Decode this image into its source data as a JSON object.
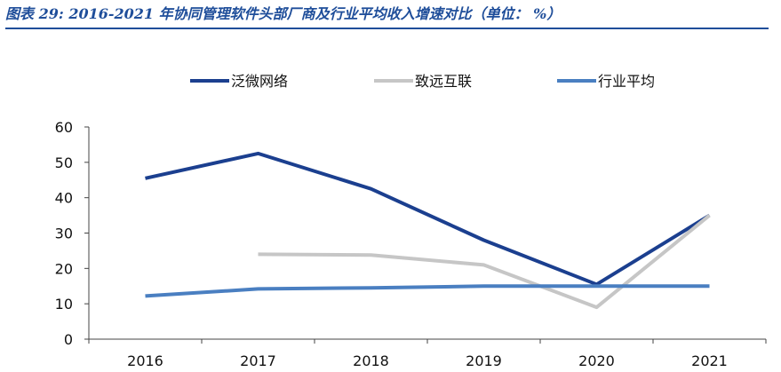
{
  "header": {
    "figure_title": "图表 29:  2016-2021 年协同管理软件头部厂商及行业平均收入增速对比（单位： %）"
  },
  "colors": {
    "header": "#1f4e9a",
    "axis": "#444444"
  },
  "chart_data": {
    "type": "line",
    "title": "",
    "xlabel": "",
    "ylabel": "",
    "categories": [
      "2016",
      "2017",
      "2018",
      "2019",
      "2020",
      "2021"
    ],
    "ylim": [
      0,
      60
    ],
    "yticks": [
      0,
      10,
      20,
      30,
      40,
      50,
      60
    ],
    "grid": false,
    "legend_position": "top",
    "series": [
      {
        "name": "泛微网络",
        "color": "#1b3f8f",
        "values": [
          45.5,
          52.5,
          42.5,
          28,
          15.5,
          35
        ]
      },
      {
        "name": "致远互联",
        "color": "#c6c6c6",
        "values": [
          null,
          24,
          23.8,
          21,
          9,
          35
        ]
      },
      {
        "name": "行业平均",
        "color": "#4a7fc1",
        "values": [
          12.2,
          14.2,
          14.5,
          15,
          15,
          15
        ]
      }
    ]
  }
}
